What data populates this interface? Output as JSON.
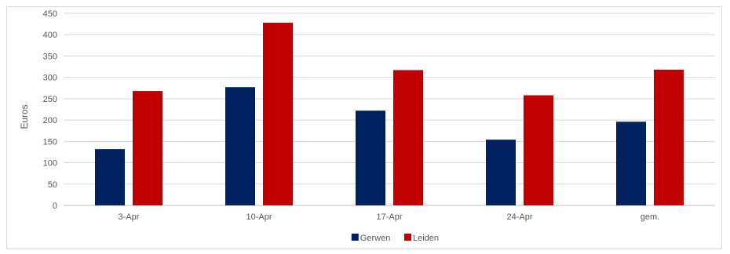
{
  "chart_data": {
    "type": "bar",
    "title": "",
    "xlabel": "",
    "ylabel": "Euros",
    "ylim": [
      0,
      450
    ],
    "yticks": [
      0,
      50,
      100,
      150,
      200,
      250,
      300,
      350,
      400,
      450
    ],
    "grid": true,
    "legend_position": "bottom",
    "categories": [
      "3-Apr",
      "10-Apr",
      "17-Apr",
      "24-Apr",
      "gem."
    ],
    "series": [
      {
        "name": "Gerwen",
        "color": "#002060",
        "values": [
          132,
          277,
          222,
          154,
          196
        ]
      },
      {
        "name": "Leiden",
        "color": "#c00000",
        "values": [
          268,
          428,
          317,
          258,
          318
        ]
      }
    ]
  }
}
